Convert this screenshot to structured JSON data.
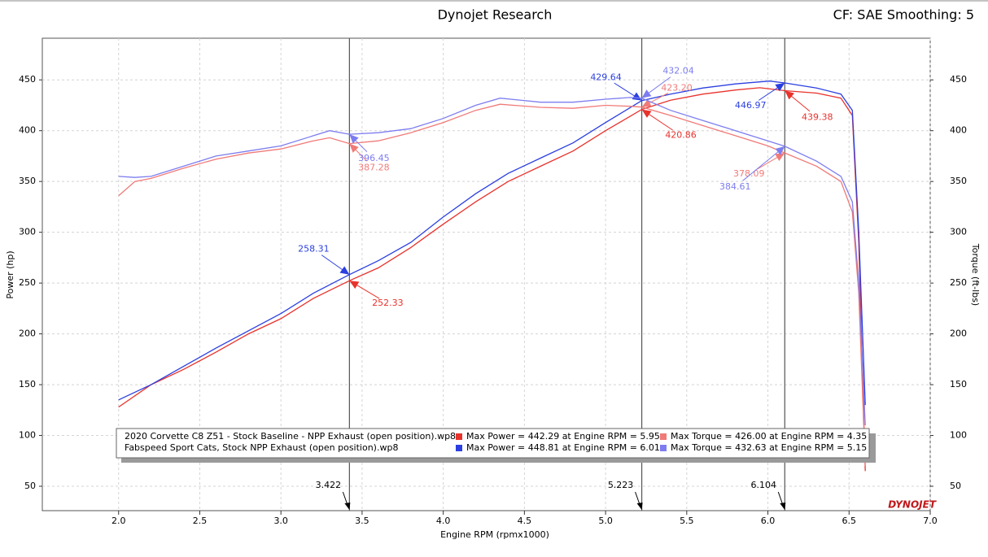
{
  "chart_data": {
    "type": "line",
    "title": "Dynojet Research",
    "subtitle": "CF: SAE Smoothing: 5",
    "xlabel": "Engine RPM (rpmx1000)",
    "ylabel": "Power (hp)",
    "y2label": "Torque (ft-lbs)",
    "logo": "DYNOJET",
    "xlim": [
      1.53,
      7.0
    ],
    "ylim": [
      26,
      491
    ],
    "y2lim": [
      26,
      491
    ],
    "xticks": [
      {
        "value": 2,
        "label": "2.0"
      },
      2.5,
      {
        "value": 3,
        "label": "3.0"
      },
      3.5,
      {
        "value": 4,
        "label": "4.0"
      },
      4.5,
      {
        "value": 5,
        "label": "5.0"
      },
      5.5,
      {
        "value": 6,
        "label": "6.0"
      },
      6.5,
      {
        "value": 7,
        "label": "7.0"
      }
    ],
    "yticks": [
      50,
      100,
      150,
      200,
      250,
      300,
      350,
      400,
      450
    ],
    "y2ticks": [
      50,
      100,
      150,
      200,
      250,
      300,
      350,
      400,
      450
    ],
    "grid": true,
    "cursors": [
      3.422,
      5.223,
      6.104
    ],
    "series": [
      {
        "color": "#e8322c",
        "x": [
          2.0,
          2.2,
          2.4,
          2.6,
          2.8,
          3.0,
          3.2,
          3.422,
          3.6,
          3.8,
          4.0,
          4.2,
          4.4,
          4.6,
          4.8,
          5.0,
          5.223,
          5.4,
          5.6,
          5.8,
          5.95,
          6.104,
          6.3,
          6.45,
          6.52,
          6.56,
          6.6
        ],
        "values": [
          128,
          150,
          165,
          182,
          200,
          215,
          235,
          252.33,
          265,
          285,
          308,
          330,
          350,
          365,
          380,
          400,
          420.86,
          430,
          436,
          440,
          442.29,
          439.38,
          437,
          432,
          415,
          290,
          65
        ],
        "value_labels": [
          null,
          null,
          null,
          null,
          null,
          null,
          null,
          "252.33",
          null,
          null,
          null,
          null,
          null,
          null,
          null,
          null,
          "420.86",
          null,
          null,
          null,
          null,
          "439.38",
          null,
          null,
          null,
          null,
          null
        ]
      },
      {
        "color": "#2b3fe0",
        "x": [
          2.0,
          2.2,
          2.4,
          2.6,
          2.8,
          3.0,
          3.2,
          3.422,
          3.6,
          3.8,
          4.0,
          4.2,
          4.4,
          4.6,
          4.8,
          5.0,
          5.223,
          5.4,
          5.6,
          5.8,
          6.01,
          6.104,
          6.3,
          6.45,
          6.52,
          6.56,
          6.6
        ],
        "values": [
          135,
          150,
          168,
          186,
          203,
          220,
          240,
          258.31,
          272,
          290,
          315,
          338,
          358,
          373,
          388,
          408,
          429.64,
          436,
          442,
          446,
          448.81,
          446.97,
          442,
          436,
          420,
          300,
          130
        ],
        "value_labels": [
          null,
          null,
          null,
          null,
          null,
          null,
          null,
          "258.31",
          null,
          null,
          null,
          null,
          null,
          null,
          null,
          null,
          "429.64",
          null,
          null,
          null,
          null,
          "446.97",
          null,
          null,
          null,
          null,
          null
        ]
      },
      {
        "color": "#f07a78",
        "axis": "y2",
        "x": [
          2.0,
          2.1,
          2.2,
          2.4,
          2.6,
          2.8,
          3.0,
          3.2,
          3.3,
          3.422,
          3.6,
          3.8,
          4.0,
          4.2,
          4.35,
          4.6,
          4.8,
          5.0,
          5.15,
          5.223,
          5.4,
          5.6,
          5.8,
          6.0,
          6.104,
          6.3,
          6.45,
          6.52,
          6.56,
          6.6
        ],
        "values": [
          336,
          350,
          353,
          363,
          372,
          378,
          382,
          390,
          393,
          387.28,
          390,
          398,
          408,
          420,
          426,
          423,
          422,
          425,
          424,
          423.2,
          415,
          405,
          395,
          385,
          378.09,
          365,
          350,
          320,
          240,
          70
        ],
        "value_labels": [
          null,
          null,
          null,
          null,
          null,
          null,
          null,
          null,
          null,
          "387.28",
          null,
          null,
          null,
          null,
          null,
          null,
          null,
          null,
          null,
          "423.20",
          null,
          null,
          null,
          null,
          "378.09",
          null,
          null,
          null,
          null,
          null
        ]
      },
      {
        "color": "#7d7df0",
        "axis": "y2",
        "x": [
          2.0,
          2.1,
          2.2,
          2.4,
          2.6,
          2.8,
          3.0,
          3.2,
          3.3,
          3.422,
          3.6,
          3.8,
          4.0,
          4.2,
          4.35,
          4.6,
          4.8,
          5.0,
          5.15,
          5.223,
          5.4,
          5.6,
          5.8,
          6.0,
          6.104,
          6.3,
          6.45,
          6.52,
          6.56,
          6.6
        ],
        "values": [
          355,
          354,
          355,
          365,
          375,
          380,
          385,
          395,
          400,
          396.45,
          398,
          402,
          412,
          425,
          432,
          428,
          428,
          431,
          432.63,
          432.04,
          420,
          410,
          400,
          390,
          384.61,
          370,
          355,
          330,
          250,
          110
        ],
        "value_labels": [
          null,
          null,
          null,
          null,
          null,
          null,
          null,
          null,
          null,
          "396.45",
          null,
          null,
          null,
          null,
          null,
          null,
          null,
          null,
          null,
          "432.04",
          null,
          null,
          null,
          null,
          "384.61",
          null,
          null,
          null,
          null,
          null
        ]
      }
    ],
    "legend": [
      {
        "file": "2020 Corvette C8 Z51 - Stock Baseline - NPP Exhaust (open position).wp8",
        "power": "Max Power = 442.29 at Engine RPM = 5.95",
        "torque": "Max Torque = 426.00 at Engine RPM = 4.35"
      },
      {
        "file": "Fabspeed Sport Cats, Stock NPP Exhaust (open position).wp8",
        "power": "Max Power = 448.81 at Engine RPM = 6.01",
        "torque": "Max Torque = 432.63 at Engine RPM = 5.15"
      }
    ]
  }
}
